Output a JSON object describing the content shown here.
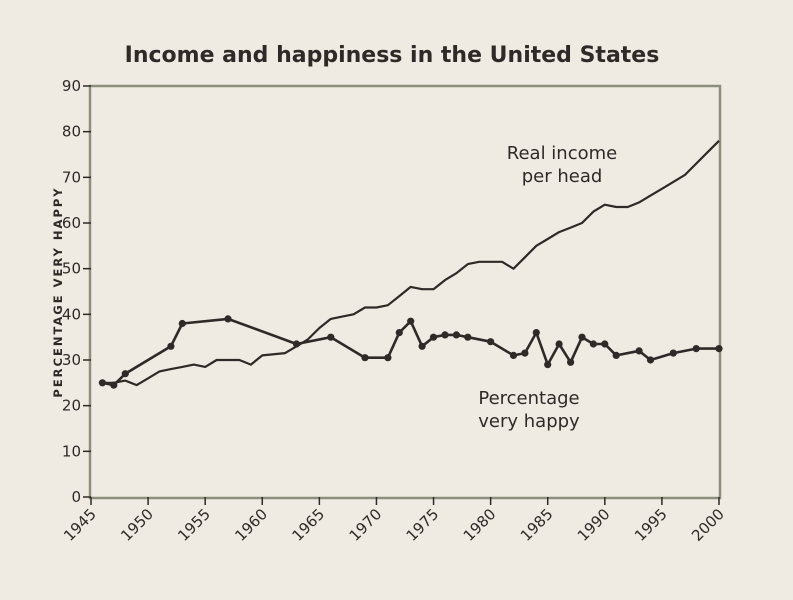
{
  "chart_data": {
    "type": "line",
    "title": "Income and happiness in the United States",
    "ylabel": "PERCENTAGE VERY HAPPY",
    "xlabel": "",
    "xlim": [
      1945,
      2000
    ],
    "ylim": [
      0,
      90
    ],
    "x_ticks": [
      "1945",
      "1950",
      "1955",
      "1960",
      "1965",
      "1970",
      "1975",
      "1980",
      "1985",
      "1990",
      "1995",
      "2000"
    ],
    "y_ticks": [
      "0",
      "10",
      "20",
      "30",
      "40",
      "50",
      "60",
      "70",
      "80",
      "90"
    ],
    "grid": false,
    "colors": {
      "line": "#2f2a27",
      "background": "#efeae2"
    },
    "annotations": {
      "income_line1": "Real income",
      "income_line2": "per head",
      "happy_line1": "Percentage",
      "happy_line2": "very happy"
    },
    "series": [
      {
        "key": "income",
        "markers": false,
        "x": [
          1946,
          1947,
          1948,
          1949,
          1950,
          1951,
          1952,
          1953,
          1954,
          1955,
          1956,
          1957,
          1958,
          1959,
          1960,
          1962,
          1963,
          1964,
          1965,
          1966,
          1967,
          1968,
          1969,
          1970,
          1971,
          1972,
          1973,
          1974,
          1975,
          1976,
          1977,
          1978,
          1979,
          1980,
          1981,
          1982,
          1983,
          1984,
          1985,
          1986,
          1987,
          1988,
          1989,
          1990,
          1991,
          1992,
          1993,
          1994,
          1995,
          1996,
          1997,
          1998,
          1999,
          2000
        ],
        "values": [
          25,
          25,
          25.5,
          24.5,
          26,
          27.5,
          28,
          28.5,
          29,
          28.5,
          30,
          30,
          30,
          29,
          31,
          31.5,
          33,
          34.5,
          37,
          39,
          39.5,
          40,
          41.5,
          41.5,
          42,
          44,
          46,
          45.5,
          45.5,
          47.5,
          49,
          51,
          51.5,
          51.5,
          51.5,
          50,
          52.5,
          55,
          56.5,
          58,
          59,
          60,
          62.5,
          64,
          63.5,
          63.5,
          64.5,
          66,
          67.5,
          69,
          70.5,
          73,
          75.5,
          78
        ]
      },
      {
        "key": "happy",
        "markers": true,
        "x": [
          1946,
          1947,
          1948,
          1952,
          1953,
          1957,
          1963,
          1966,
          1969,
          1971,
          1972,
          1973,
          1974,
          1975,
          1976,
          1977,
          1978,
          1980,
          1982,
          1983,
          1984,
          1985,
          1986,
          1987,
          1988,
          1989,
          1990,
          1991,
          1993,
          1994,
          1996,
          1998,
          2000
        ],
        "values": [
          25,
          24.5,
          27,
          33,
          38,
          39,
          33.5,
          35,
          30.5,
          30.5,
          36,
          38.5,
          33,
          35,
          35.5,
          35.5,
          35,
          34,
          31,
          31.5,
          36,
          29,
          33.5,
          29.5,
          35,
          33.5,
          33.5,
          31,
          32,
          30,
          31.5,
          32.5,
          32.5
        ]
      }
    ]
  }
}
